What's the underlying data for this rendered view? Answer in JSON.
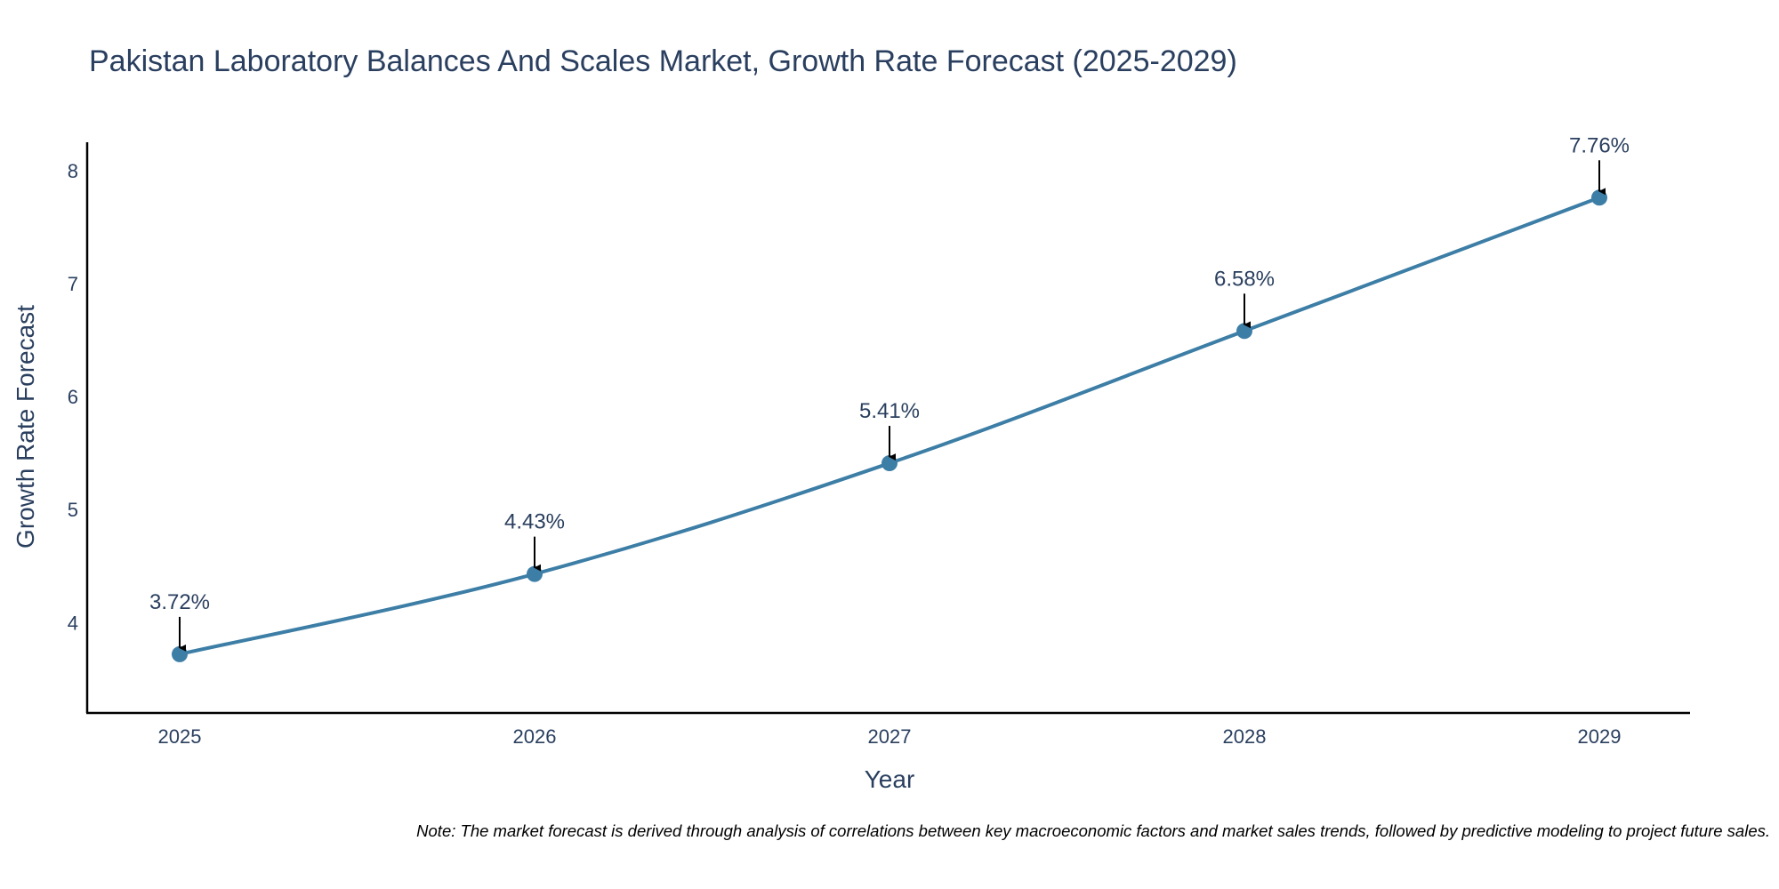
{
  "chart_data": {
    "type": "line",
    "title": "Pakistan Laboratory Balances And Scales Market, Growth Rate Forecast (2025-2029)",
    "xlabel": "Year",
    "ylabel": "Growth Rate Forecast",
    "categories": [
      "2025",
      "2026",
      "2027",
      "2028",
      "2029"
    ],
    "values": [
      3.72,
      4.43,
      5.41,
      6.58,
      7.76
    ],
    "data_labels": [
      "3.72%",
      "4.43%",
      "5.41%",
      "6.58%",
      "7.76%"
    ],
    "y_ticks": [
      "4",
      "5",
      "6",
      "7",
      "8"
    ],
    "ylim": [
      3.2,
      8.25
    ],
    "grid": false,
    "line_color": "#3d7ea6",
    "marker_color": "#3d7ea6",
    "arrow_color": "#000000"
  },
  "note": "Note: The market forecast is derived through analysis of correlations between key macroeconomic factors and market sales trends, followed by predictive modeling to project future sales."
}
